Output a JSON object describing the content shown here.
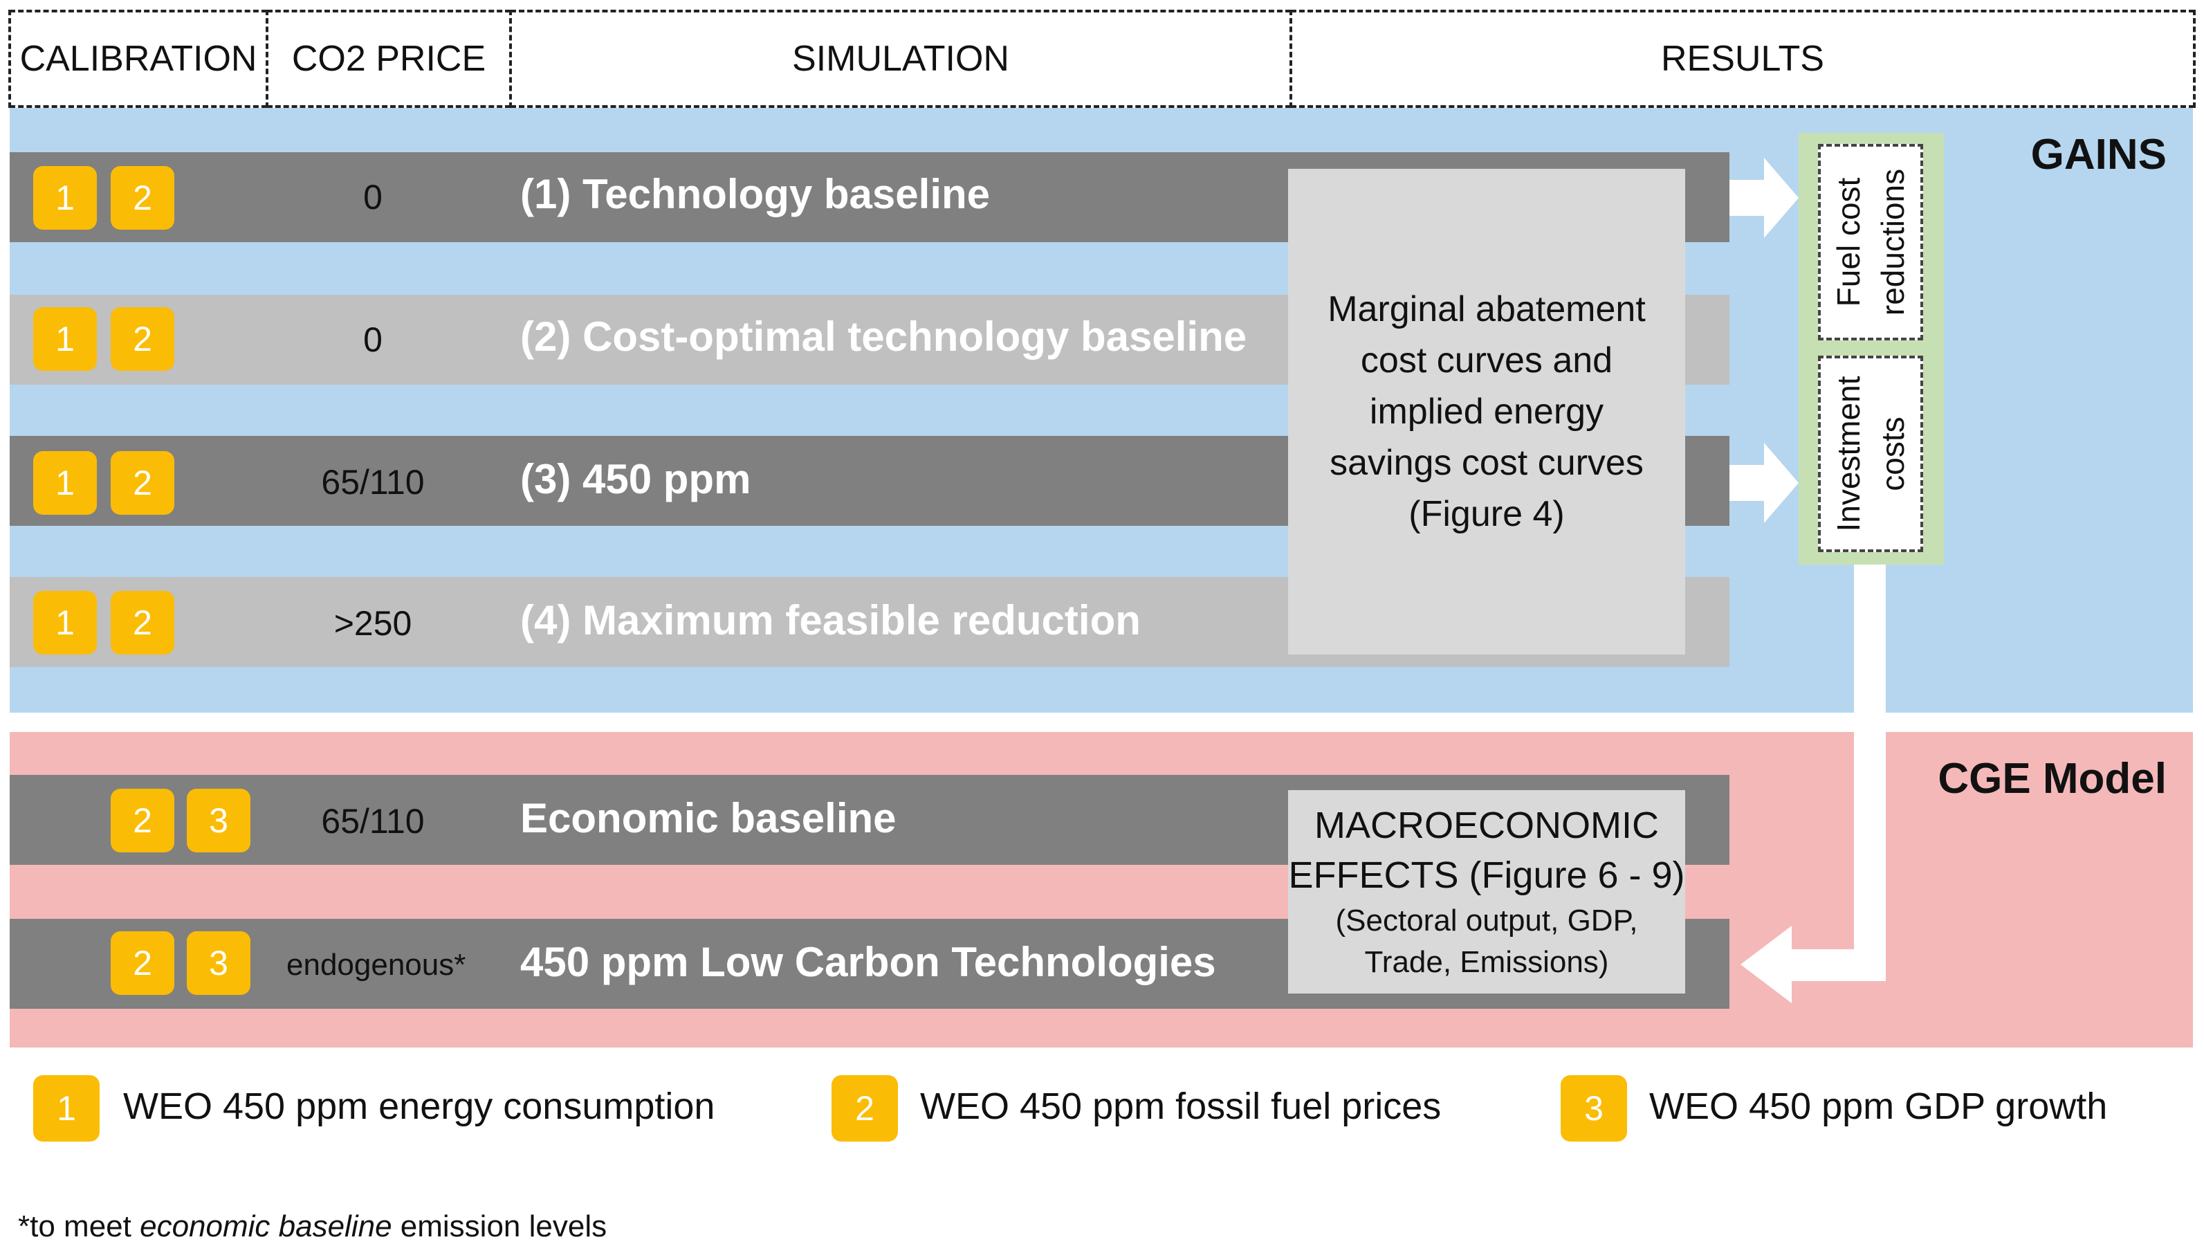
{
  "header": {
    "calibration": "CALIBRATION",
    "co2_price": "CO2 PRICE",
    "simulation": "SIMULATION",
    "results": "RESULTS"
  },
  "gains": {
    "title": "GAINS",
    "rows": [
      {
        "badges": [
          "1",
          "2"
        ],
        "price": "0",
        "label": "(1) Technology baseline"
      },
      {
        "badges": [
          "1",
          "2"
        ],
        "price": "0",
        "label": "(2) Cost-optimal technology baseline"
      },
      {
        "badges": [
          "1",
          "2"
        ],
        "price": "65/110",
        "label": "(3) 450 ppm"
      },
      {
        "badges": [
          "1",
          "2"
        ],
        "price": ">250",
        "label": "(4) Maximum feasible reduction"
      }
    ],
    "mac_box": {
      "line1": "Marginal abatement",
      "line2": "cost curves and",
      "line3": "implied energy",
      "line4": "savings cost curves",
      "line5": "(Figure 4)"
    },
    "results": {
      "fuel_line1": "Fuel cost",
      "fuel_line2": "reductions",
      "inv_line1": "Investment",
      "inv_line2": "costs"
    }
  },
  "cge": {
    "title": "CGE Model",
    "rows": [
      {
        "badges": [
          "2",
          "3"
        ],
        "price": "65/110",
        "label": "Economic baseline"
      },
      {
        "badges": [
          "2",
          "3"
        ],
        "price": "endogenous*",
        "label": "450 ppm Low Carbon Technologies"
      }
    ],
    "macro_box": {
      "line1": "MACROECONOMIC",
      "line2": "EFFECTS (Figure 6 - 9)",
      "line3": "(Sectoral output, GDP,",
      "line4": "Trade, Emissions)"
    }
  },
  "legend": [
    {
      "num": "1",
      "text": "WEO 450 ppm energy consumption"
    },
    {
      "num": "2",
      "text": "WEO 450 ppm fossil fuel prices"
    },
    {
      "num": "3",
      "text": "WEO 450 ppm GDP growth"
    }
  ],
  "footnote": {
    "prefix": "*to meet ",
    "italic": "economic baseline",
    "suffix": " emission levels"
  },
  "colors": {
    "gains_bg": "#b5d6ee",
    "cge_bg": "#f4b8b8",
    "badge": "#fbbc05",
    "dark_bar": "#808080",
    "light_bar": "#c0c0c0",
    "results_frame": "#c6e0b4"
  }
}
